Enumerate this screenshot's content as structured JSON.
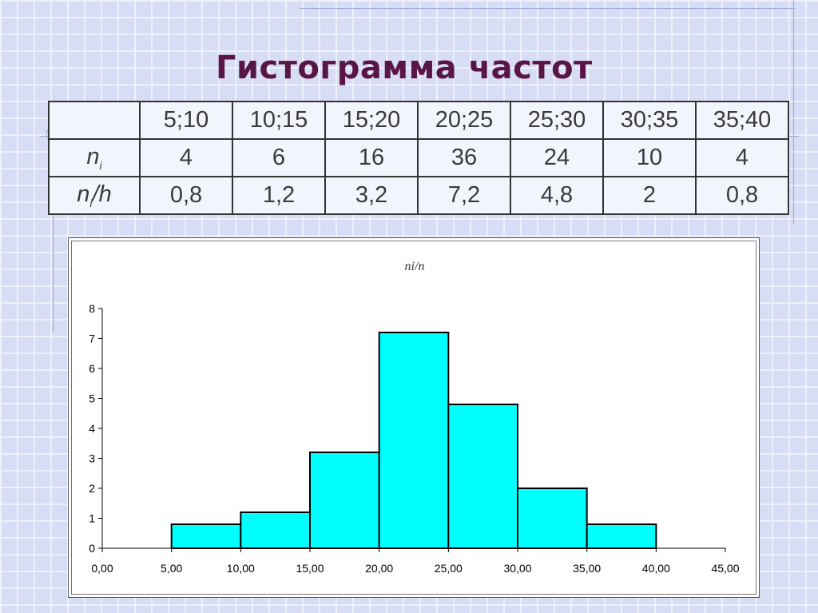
{
  "title": "Гистограмма частот",
  "table": {
    "intervals": [
      "5;10",
      "10;15",
      "15;20",
      "20;25",
      "25;30",
      "30;35",
      "35;40"
    ],
    "rows": [
      {
        "label_main": "n",
        "label_sub": "i",
        "label_rest": "",
        "values": [
          "4",
          "6",
          "16",
          "36",
          "24",
          "10",
          "4"
        ]
      },
      {
        "label_main": "n",
        "label_sub": "i",
        "label_rest": "/h",
        "values": [
          "0,8",
          "1,2",
          "3,2",
          "7,2",
          "4,8",
          "2",
          "0,8"
        ]
      }
    ]
  },
  "chart_data": {
    "type": "bar",
    "title": "ni/n",
    "bins": [
      {
        "x0": 5,
        "x1": 10,
        "value": 0.8
      },
      {
        "x0": 10,
        "x1": 15,
        "value": 1.2
      },
      {
        "x0": 15,
        "x1": 20,
        "value": 3.2
      },
      {
        "x0": 20,
        "x1": 25,
        "value": 7.2
      },
      {
        "x0": 25,
        "x1": 30,
        "value": 4.8
      },
      {
        "x0": 30,
        "x1": 35,
        "value": 2
      },
      {
        "x0": 35,
        "x1": 40,
        "value": 0.8
      }
    ],
    "xlim": [
      0,
      45
    ],
    "ylim": [
      0,
      8
    ],
    "x_ticks": [
      "0,00",
      "5,00",
      "10,00",
      "15,00",
      "20,00",
      "25,00",
      "30,00",
      "35,00",
      "40,00",
      "45,00"
    ],
    "y_ticks": [
      "0",
      "1",
      "2",
      "3",
      "4",
      "5",
      "6",
      "7",
      "8"
    ],
    "bar_color": "#00ffff",
    "grid": false,
    "legend": "none"
  }
}
